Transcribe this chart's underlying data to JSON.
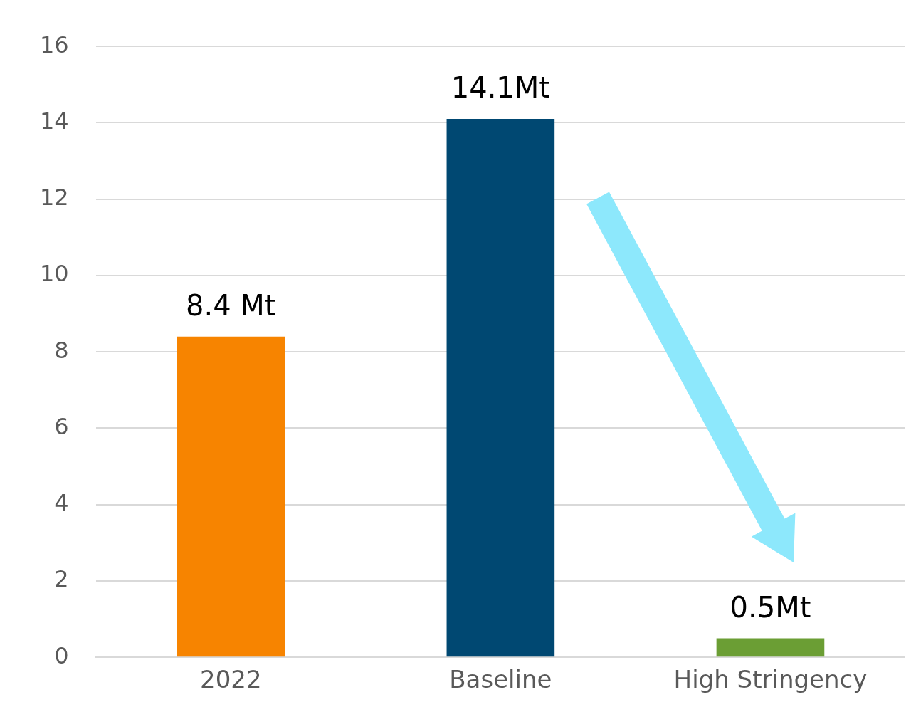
{
  "chart_data": {
    "type": "bar",
    "categories": [
      "2022",
      "Baseline",
      "High Stringency"
    ],
    "values": [
      8.4,
      14.1,
      0.5
    ],
    "colors": [
      "#f78400",
      "#004872",
      "#6b9e34"
    ],
    "value_labels": [
      "8.4 Mt",
      "14.1Mt",
      "0.5Mt"
    ],
    "ylim": [
      0,
      16
    ],
    "yticks": [
      0,
      2,
      4,
      6,
      8,
      10,
      12,
      14,
      16
    ],
    "grid": "y",
    "legend": false
  }
}
